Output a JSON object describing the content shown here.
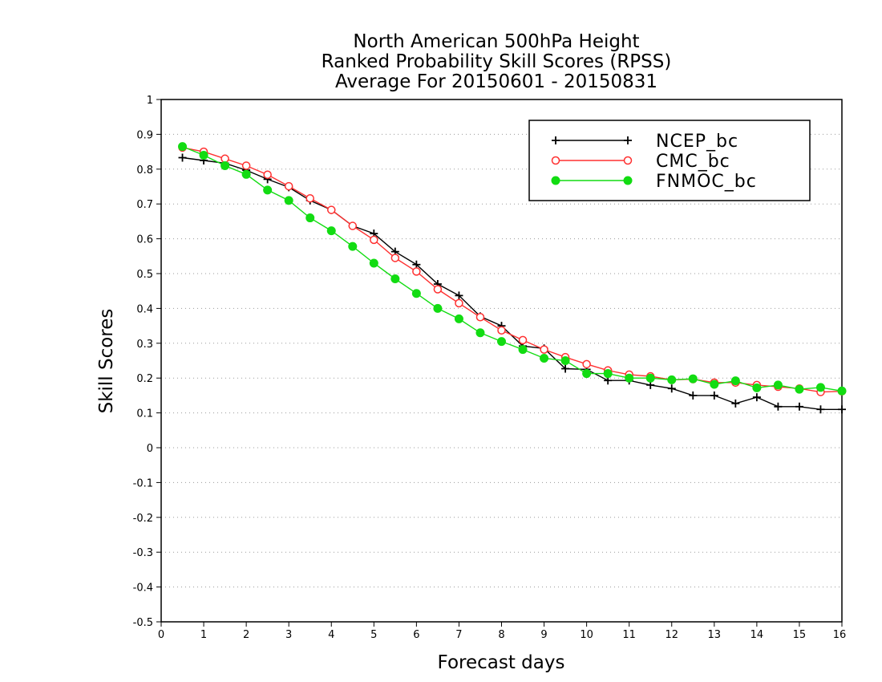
{
  "chart_data": {
    "type": "line",
    "title": [
      "North American 500hPa Height",
      "Ranked Probability Skill Scores (RPSS)",
      "Average For 20150601 - 20150831"
    ],
    "xlabel": "Forecast days",
    "ylabel": "Skill Scores",
    "xlim": [
      0,
      16
    ],
    "ylim": [
      -0.5,
      1
    ],
    "xticks": [
      "0",
      "1",
      "2",
      "3",
      "4",
      "5",
      "6",
      "7",
      "8",
      "9",
      "10",
      "11",
      "12",
      "13",
      "14",
      "15",
      "16"
    ],
    "yticks": [
      "-0.5",
      "-0.4",
      "-0.3",
      "-0.2",
      "-0.1",
      "0",
      "0.1",
      "0.2",
      "0.3",
      "0.4",
      "0.5",
      "0.6",
      "0.7",
      "0.8",
      "0.9",
      "1"
    ],
    "grid": true,
    "legend_position": "top-right",
    "x": [
      0.5,
      1,
      1.5,
      2,
      2.5,
      3,
      3.5,
      4,
      4.5,
      5,
      5.5,
      6,
      6.5,
      7,
      7.5,
      8,
      8.5,
      9,
      9.5,
      10,
      10.5,
      11,
      11.5,
      12,
      12.5,
      13,
      13.5,
      14,
      14.5,
      15,
      15.5,
      16
    ],
    "series": [
      {
        "name": "NCEP_bc",
        "color": "#000000",
        "marker": "plus",
        "values": [
          0.833,
          0.825,
          0.817,
          0.797,
          0.771,
          0.748,
          0.71,
          0.683,
          0.637,
          0.615,
          0.563,
          0.526,
          0.47,
          0.437,
          0.377,
          0.35,
          0.292,
          0.285,
          0.227,
          0.225,
          0.193,
          0.193,
          0.18,
          0.17,
          0.15,
          0.15,
          0.127,
          0.145,
          0.118,
          0.118,
          0.11,
          0.11
        ]
      },
      {
        "name": "CMC_bc",
        "color": "#ff3030",
        "marker": "open-circle",
        "values": [
          0.862,
          0.85,
          0.83,
          0.81,
          0.784,
          0.751,
          0.716,
          0.683,
          0.637,
          0.597,
          0.545,
          0.506,
          0.455,
          0.415,
          0.375,
          0.337,
          0.309,
          0.282,
          0.26,
          0.24,
          0.222,
          0.21,
          0.205,
          0.195,
          0.197,
          0.187,
          0.187,
          0.18,
          0.175,
          0.17,
          0.16,
          0.162
        ]
      },
      {
        "name": "FNMOC_bc",
        "color": "#12dc12",
        "marker": "filled-circle",
        "values": [
          0.865,
          0.84,
          0.81,
          0.785,
          0.74,
          0.71,
          0.66,
          0.623,
          0.578,
          0.53,
          0.485,
          0.443,
          0.4,
          0.37,
          0.33,
          0.305,
          0.282,
          0.257,
          0.25,
          0.213,
          0.213,
          0.2,
          0.2,
          0.195,
          0.198,
          0.182,
          0.192,
          0.172,
          0.18,
          0.168,
          0.173,
          0.163
        ]
      }
    ]
  }
}
